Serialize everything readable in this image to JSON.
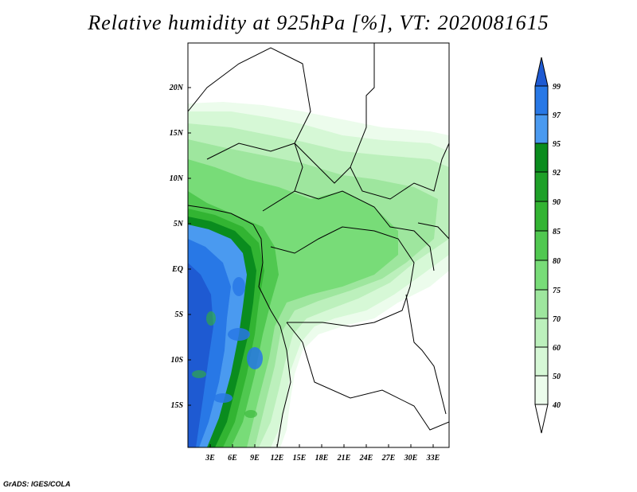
{
  "title": "Relative humidity at 925hPa [%], VT: 2020081615",
  "credit": "GrADS: IGES/COLA",
  "map": {
    "lat_ticks": [
      "20N",
      "15N",
      "10N",
      "5N",
      "EQ",
      "5S",
      "10S",
      "15S"
    ],
    "lon_ticks": [
      "3E",
      "6E",
      "9E",
      "12E",
      "15E",
      "18E",
      "21E",
      "24E",
      "27E",
      "30E",
      "33E"
    ]
  },
  "colorbar": {
    "labels": [
      "99",
      "97",
      "95",
      "92",
      "90",
      "85",
      "80",
      "75",
      "70",
      "60",
      "50",
      "40"
    ],
    "colors": [
      "#1e5ad2",
      "#2878e6",
      "#4a9af0",
      "#0a8c1e",
      "#1ea028",
      "#32b432",
      "#50c850",
      "#78dc78",
      "#9ee69e",
      "#bcf0bc",
      "#d6f8d6",
      "#ecfcec",
      "#ffffff"
    ]
  }
}
